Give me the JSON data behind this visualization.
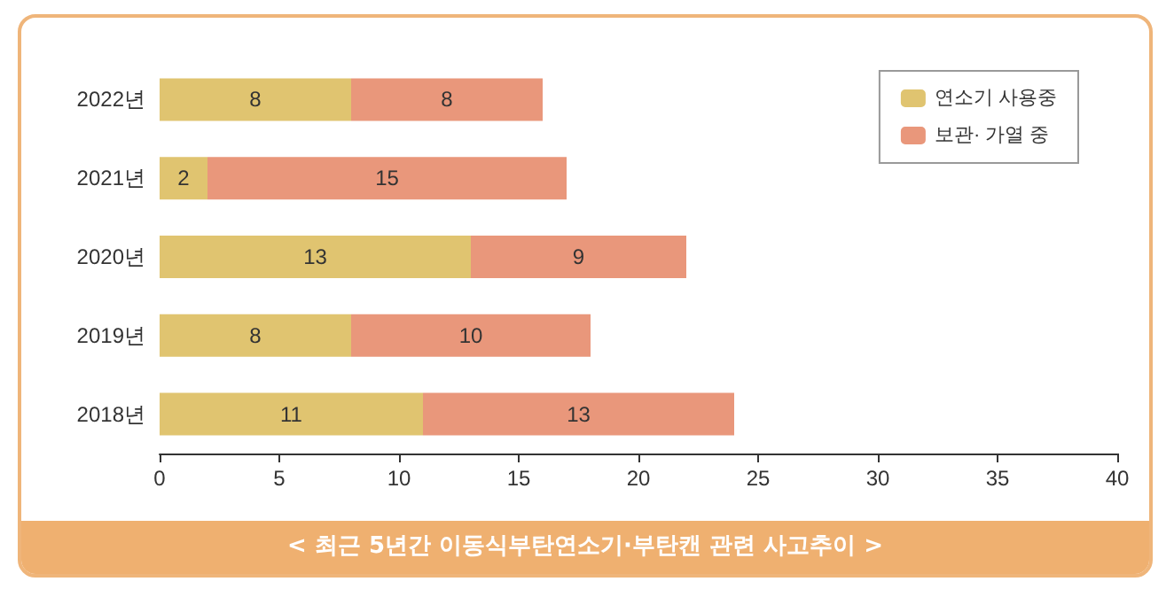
{
  "chart_data": {
    "type": "bar",
    "orientation": "horizontal",
    "stacked": true,
    "title": "< 최근 5년간 이동식부탄연소기·부탄캔 관련 사고추이 >",
    "categories": [
      "2022년",
      "2021년",
      "2020년",
      "2019년",
      "2018년"
    ],
    "series": [
      {
        "name": "연소기 사용중",
        "color": "#e0c470",
        "values": [
          8,
          2,
          13,
          8,
          11
        ]
      },
      {
        "name": "보관· 가열 중",
        "color": "#e9977b",
        "values": [
          8,
          15,
          9,
          10,
          13
        ]
      }
    ],
    "xlim": [
      0,
      40
    ],
    "xticks": [
      0,
      5,
      10,
      15,
      20,
      25,
      30,
      35,
      40
    ],
    "data_labels": true,
    "legend": "top right",
    "grid": false
  }
}
